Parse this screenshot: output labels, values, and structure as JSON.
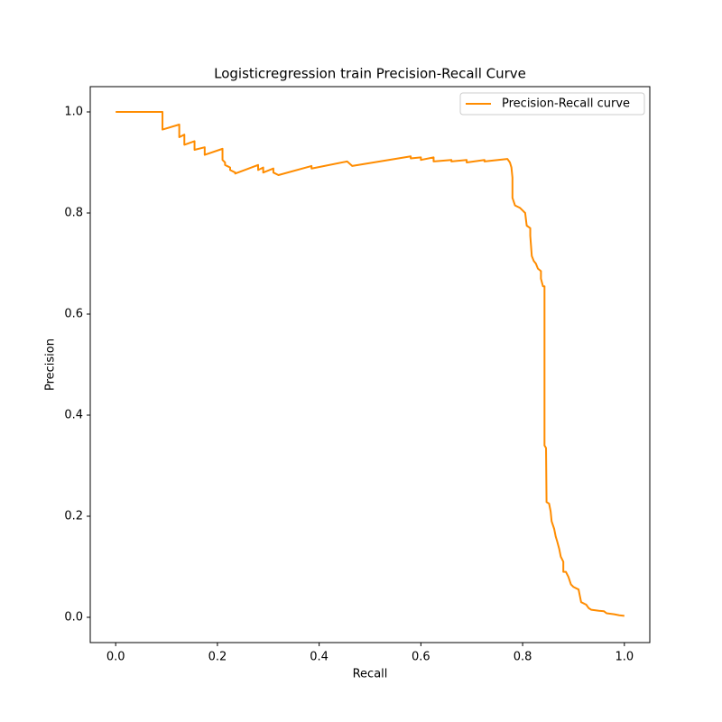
{
  "chart_data": {
    "type": "line",
    "title": "Logisticregression train Precision-Recall Curve",
    "x_label": "Recall",
    "y_label": "Precision",
    "xlim": [
      -0.05,
      1.05
    ],
    "ylim": [
      -0.05,
      1.05
    ],
    "xticks": [
      {
        "value": 0,
        "label": "0.0"
      },
      {
        "value": 0.2,
        "label": "0.2"
      },
      {
        "value": 0.4,
        "label": "0.4"
      },
      {
        "value": 0.6,
        "label": "0.6"
      },
      {
        "value": 0.8,
        "label": "0.8"
      },
      {
        "value": 1,
        "label": "1.0"
      }
    ],
    "yticks": [
      {
        "value": 0,
        "label": "0.0"
      },
      {
        "value": 0.2,
        "label": "0.2"
      },
      {
        "value": 0.4,
        "label": "0.4"
      },
      {
        "value": 0.6,
        "label": "0.6"
      },
      {
        "value": 0.8,
        "label": "0.8"
      },
      {
        "value": 1,
        "label": "1.0"
      }
    ],
    "legend": "upper right",
    "grid": false,
    "series": [
      {
        "name": "Precision-Recall curve",
        "color": "#ff8c00",
        "x": [
          0,
          0.092,
          0.092,
          0.125,
          0.125,
          0.135,
          0.135,
          0.155,
          0.155,
          0.175,
          0.175,
          0.21,
          0.21,
          0.215,
          0.215,
          0.225,
          0.225,
          0.235,
          0.235,
          0.28,
          0.28,
          0.29,
          0.29,
          0.31,
          0.31,
          0.32,
          0.385,
          0.385,
          0.455,
          0.465,
          0.58,
          0.58,
          0.6,
          0.6,
          0.625,
          0.625,
          0.66,
          0.66,
          0.69,
          0.69,
          0.725,
          0.725,
          0.77,
          0.775,
          0.778,
          0.78,
          0.78,
          0.785,
          0.795,
          0.8,
          0.805,
          0.808,
          0.815,
          0.815,
          0.818,
          0.822,
          0.826,
          0.83,
          0.836,
          0.836,
          0.84,
          0.843,
          0.843,
          0.846,
          0.847,
          0.852,
          0.855,
          0.857,
          0.862,
          0.865,
          0.868,
          0.872,
          0.875,
          0.88,
          0.88,
          0.885,
          0.89,
          0.895,
          0.9,
          0.91,
          0.912,
          0.915,
          0.925,
          0.93,
          0.935,
          0.95,
          0.96,
          0.965,
          0.98,
          0.99,
          1.0
        ],
        "values": [
          1.0,
          1.0,
          0.965,
          0.975,
          0.95,
          0.955,
          0.935,
          0.942,
          0.925,
          0.93,
          0.915,
          0.927,
          0.905,
          0.9,
          0.895,
          0.89,
          0.885,
          0.88,
          0.878,
          0.895,
          0.885,
          0.89,
          0.88,
          0.888,
          0.88,
          0.875,
          0.893,
          0.888,
          0.902,
          0.893,
          0.912,
          0.908,
          0.91,
          0.905,
          0.91,
          0.902,
          0.905,
          0.902,
          0.905,
          0.9,
          0.905,
          0.902,
          0.907,
          0.9,
          0.89,
          0.87,
          0.83,
          0.815,
          0.81,
          0.805,
          0.8,
          0.775,
          0.77,
          0.755,
          0.715,
          0.705,
          0.7,
          0.69,
          0.685,
          0.67,
          0.655,
          0.655,
          0.34,
          0.335,
          0.228,
          0.225,
          0.21,
          0.19,
          0.175,
          0.16,
          0.15,
          0.135,
          0.12,
          0.11,
          0.09,
          0.09,
          0.08,
          0.065,
          0.06,
          0.055,
          0.045,
          0.03,
          0.025,
          0.018,
          0.015,
          0.013,
          0.012,
          0.008,
          0.006,
          0.004,
          0.003
        ]
      }
    ]
  }
}
